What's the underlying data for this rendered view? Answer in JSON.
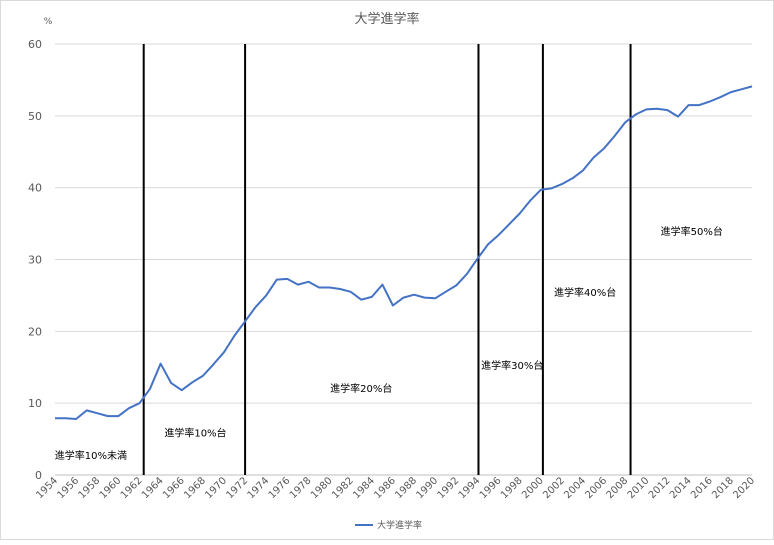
{
  "chart_data": {
    "type": "line",
    "title": "大学進学率",
    "ylabel": "%",
    "xlabel": "",
    "ylim": [
      0,
      60
    ],
    "yticks": [
      0,
      10,
      20,
      30,
      40,
      50,
      60
    ],
    "xlim": [
      1954,
      2020
    ],
    "xticks": [
      1954,
      1956,
      1958,
      1960,
      1962,
      1964,
      1966,
      1968,
      1970,
      1972,
      1974,
      1976,
      1978,
      1980,
      1982,
      1984,
      1986,
      1988,
      1990,
      1992,
      1994,
      1996,
      1998,
      2000,
      2002,
      2004,
      2006,
      2008,
      2010,
      2012,
      2014,
      2016,
      2018,
      2020
    ],
    "grid": true,
    "legend_position": "bottom",
    "series": [
      {
        "name": "大学進学率",
        "color": "#4472C4",
        "x": [
          1954,
          1955,
          1956,
          1957,
          1958,
          1959,
          1960,
          1961,
          1962,
          1963,
          1964,
          1965,
          1966,
          1967,
          1968,
          1969,
          1970,
          1971,
          1972,
          1973,
          1974,
          1975,
          1976,
          1977,
          1978,
          1979,
          1980,
          1981,
          1982,
          1983,
          1984,
          1985,
          1986,
          1987,
          1988,
          1989,
          1990,
          1991,
          1992,
          1993,
          1994,
          1995,
          1996,
          1997,
          1998,
          1999,
          2000,
          2001,
          2002,
          2003,
          2004,
          2005,
          2006,
          2007,
          2008,
          2009,
          2010,
          2011,
          2012,
          2013,
          2014,
          2015,
          2016,
          2017,
          2018,
          2019,
          2020
        ],
        "values": [
          7.9,
          7.9,
          7.8,
          9.0,
          8.6,
          8.2,
          8.2,
          9.3,
          10.0,
          12.0,
          15.5,
          12.8,
          11.8,
          12.9,
          13.8,
          15.4,
          17.1,
          19.4,
          21.4,
          23.4,
          25.0,
          27.2,
          27.3,
          26.5,
          26.9,
          26.1,
          26.1,
          25.9,
          25.5,
          24.4,
          24.8,
          26.5,
          23.6,
          24.7,
          25.1,
          24.7,
          24.6,
          25.5,
          26.4,
          28.0,
          30.1,
          32.1,
          33.4,
          34.9,
          36.4,
          38.2,
          39.7,
          39.9,
          40.5,
          41.3,
          42.4,
          44.2,
          45.5,
          47.2,
          49.1,
          50.2,
          50.9,
          51.0,
          50.8,
          49.9,
          51.5,
          51.5,
          52.0,
          52.6,
          53.3,
          53.7,
          54.1
        ]
      }
    ],
    "vertical_lines": [
      1962.4,
      1972,
      1994.1,
      2000.2,
      2008.5
    ],
    "annotations": [
      {
        "text": "進学率10%未満",
        "x": 1957.4,
        "y": 2.8
      },
      {
        "text": "進学率10%台",
        "x": 1967.3,
        "y": 5.9
      },
      {
        "text": "進学率20%台",
        "x": 1983.0,
        "y": 12.1
      },
      {
        "text": "進学率30%台",
        "x": 1997.3,
        "y": 15.3
      },
      {
        "text": "進学率40%台",
        "x": 2004.2,
        "y": 25.5
      },
      {
        "text": "進学率50%台",
        "x": 2014.3,
        "y": 34.0
      }
    ]
  }
}
